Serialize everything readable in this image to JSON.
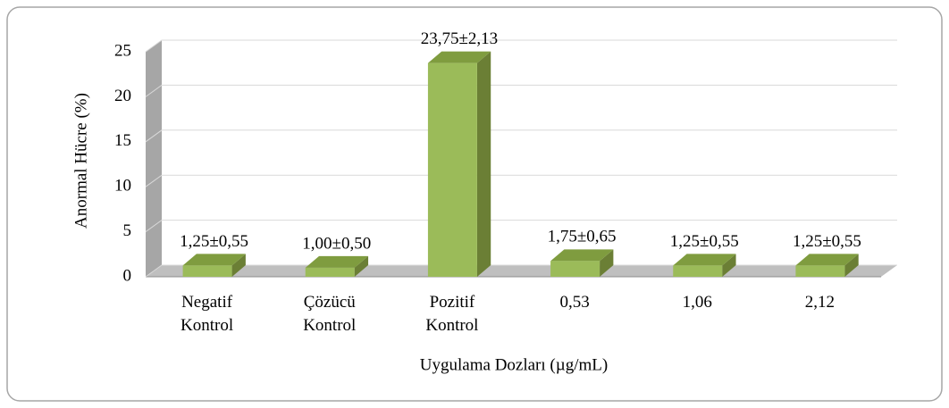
{
  "chart_data": {
    "type": "bar3d",
    "categories": [
      "Negatif Kontrol",
      "Çözücü Kontrol",
      "Pozitif Kontrol",
      "0,53",
      "1,06",
      "2,12"
    ],
    "values": [
      1.25,
      1.0,
      23.75,
      1.75,
      1.25,
      1.25
    ],
    "value_labels": [
      "1,25±0,55",
      "1,00±0,50",
      "23,75±2,13",
      "1,75±0,65",
      "1,25±0,55",
      "1,25±0,55"
    ],
    "color": "#9bbb59",
    "ylim": [
      0,
      25
    ],
    "yticks": [
      0,
      5,
      10,
      15,
      20,
      25
    ],
    "grid": true,
    "y_label": "Anormal Hücre (%)",
    "x_label": "Uygulama Dozları (µg/mL)"
  }
}
